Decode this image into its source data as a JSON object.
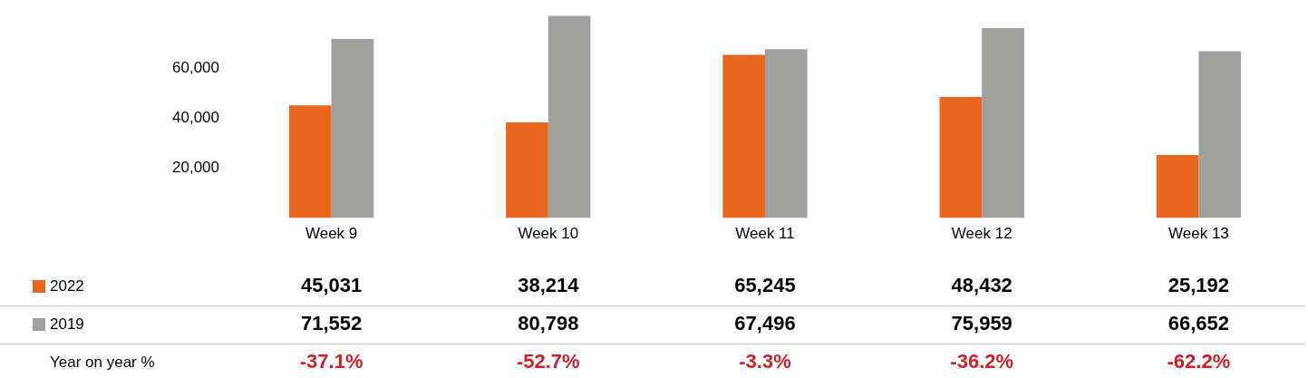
{
  "chart_data": {
    "type": "bar",
    "categories": [
      "Week 9",
      "Week 10",
      "Week 11",
      "Week 12",
      "Week 13"
    ],
    "series": [
      {
        "name": "2022",
        "color": "#e8661e",
        "values": [
          45031,
          38214,
          65245,
          48432,
          25192
        ],
        "value_labels": [
          "45,031",
          "38,214",
          "65,245",
          "48,432",
          "25,192"
        ]
      },
      {
        "name": "2019",
        "color": "#a0a09f",
        "values": [
          71552,
          80798,
          67496,
          75959,
          66652
        ],
        "value_labels": [
          "71,552",
          "80,798",
          "67,496",
          "75,959",
          "66,652"
        ]
      }
    ],
    "ylim": [
      0,
      82000
    ],
    "yticks": [
      {
        "value": 20000,
        "label": "20,000"
      },
      {
        "value": 40000,
        "label": "40,000"
      },
      {
        "value": 60000,
        "label": "60,000"
      }
    ],
    "grid": false,
    "legend": "bottom left",
    "annotations": [
      "Year on year %",
      "-37.1%",
      "-52.7%",
      "-3.3%",
      "-36.2%",
      "-62.2%"
    ]
  }
}
